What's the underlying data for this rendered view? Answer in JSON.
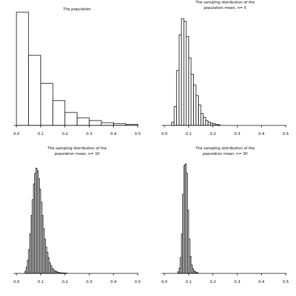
{
  "chart_data": [
    {
      "type": "bar",
      "title": [
        "The population"
      ],
      "xlim": [
        0,
        0.5
      ],
      "ylim": [
        0,
        22
      ],
      "xticks": [
        "0.0",
        "0.1",
        "0.2",
        "0.3",
        "0.4",
        "0.5"
      ],
      "bins": [
        [
          0.0,
          0.05
        ],
        [
          0.05,
          0.1
        ],
        [
          0.1,
          0.15
        ],
        [
          0.15,
          0.2
        ],
        [
          0.2,
          0.25
        ],
        [
          0.25,
          0.3
        ],
        [
          0.3,
          0.35
        ],
        [
          0.35,
          0.4
        ],
        [
          0.4,
          0.45
        ],
        [
          0.45,
          0.5
        ]
      ],
      "values": [
        21.0,
        13.0,
        7.8,
        4.6,
        2.4,
        1.4,
        0.9,
        0.5,
        0.3,
        0.2
      ]
    },
    {
      "type": "bar",
      "title": [
        "The sampling distribution of the",
        "population mean, n= 5"
      ],
      "xlim": [
        0,
        0.5
      ],
      "ylim": [
        0,
        22
      ],
      "xticks": [
        "0.0",
        "0.1",
        "0.2",
        "0.3",
        "0.4",
        "0.5"
      ],
      "bins": [
        [
          0.03,
          0.04
        ],
        [
          0.04,
          0.05
        ],
        [
          0.05,
          0.06
        ],
        [
          0.06,
          0.07
        ],
        [
          0.07,
          0.08
        ],
        [
          0.08,
          0.09
        ],
        [
          0.09,
          0.1
        ],
        [
          0.1,
          0.11
        ],
        [
          0.11,
          0.12
        ],
        [
          0.12,
          0.13
        ],
        [
          0.13,
          0.14
        ],
        [
          0.14,
          0.15
        ],
        [
          0.15,
          0.16
        ],
        [
          0.16,
          0.17
        ],
        [
          0.17,
          0.18
        ],
        [
          0.18,
          0.19
        ],
        [
          0.19,
          0.2
        ],
        [
          0.2,
          0.21
        ],
        [
          0.21,
          0.22
        ],
        [
          0.22,
          0.23
        ]
      ],
      "values": [
        0.6,
        3.5,
        10.2,
        16.8,
        19.8,
        19.3,
        16.5,
        12.5,
        9.5,
        7.5,
        5.5,
        3.8,
        2.2,
        1.5,
        0.9,
        0.6,
        0.4,
        0.3,
        0.2,
        0.1
      ]
    },
    {
      "type": "bar",
      "title": [
        "The sampling distribution of the",
        "population mean, n= 10"
      ],
      "xlim": [
        0,
        0.5
      ],
      "ylim": [
        0,
        22
      ],
      "xticks": [
        "0.0",
        "0.1",
        "0.2",
        "0.3",
        "0.4",
        "0.5"
      ],
      "bins": [
        [
          0.035,
          0.04
        ],
        [
          0.04,
          0.045
        ],
        [
          0.045,
          0.05
        ],
        [
          0.05,
          0.055
        ],
        [
          0.055,
          0.06
        ],
        [
          0.06,
          0.065
        ],
        [
          0.065,
          0.07
        ],
        [
          0.07,
          0.075
        ],
        [
          0.075,
          0.08
        ],
        [
          0.08,
          0.085
        ],
        [
          0.085,
          0.09
        ],
        [
          0.09,
          0.095
        ],
        [
          0.095,
          0.1
        ],
        [
          0.1,
          0.105
        ],
        [
          0.105,
          0.11
        ],
        [
          0.11,
          0.115
        ],
        [
          0.115,
          0.12
        ],
        [
          0.12,
          0.125
        ],
        [
          0.125,
          0.13
        ],
        [
          0.13,
          0.135
        ],
        [
          0.135,
          0.14
        ],
        [
          0.14,
          0.145
        ],
        [
          0.145,
          0.15
        ],
        [
          0.15,
          0.155
        ],
        [
          0.155,
          0.16
        ],
        [
          0.16,
          0.165
        ],
        [
          0.165,
          0.17
        ],
        [
          0.17,
          0.175
        ],
        [
          0.175,
          0.18
        ],
        [
          0.18,
          0.19
        ],
        [
          0.19,
          0.2
        ],
        [
          0.2,
          0.21
        ]
      ],
      "values": [
        0.4,
        1.2,
        2.5,
        4.5,
        7.5,
        11.0,
        14.0,
        17.0,
        19.0,
        20.0,
        19.5,
        18.0,
        16.0,
        13.5,
        11.0,
        8.5,
        6.5,
        5.0,
        4.0,
        3.0,
        2.0,
        1.5,
        1.0,
        0.7,
        0.5,
        0.4,
        0.3,
        0.2,
        0.15,
        0.1,
        0.08,
        0.05
      ]
    },
    {
      "type": "bar",
      "title": [
        "The sampling distribution of the",
        "population mean, n= 30"
      ],
      "xlim": [
        0,
        0.5
      ],
      "ylim": [
        0,
        22
      ],
      "xticks": [
        "0.0",
        "0.1",
        "0.2",
        "0.3",
        "0.4",
        "0.5"
      ],
      "bins": [
        [
          0.055,
          0.06
        ],
        [
          0.06,
          0.065
        ],
        [
          0.065,
          0.07
        ],
        [
          0.07,
          0.075
        ],
        [
          0.075,
          0.08
        ],
        [
          0.08,
          0.085
        ],
        [
          0.085,
          0.09
        ],
        [
          0.09,
          0.095
        ],
        [
          0.095,
          0.1
        ],
        [
          0.1,
          0.105
        ],
        [
          0.105,
          0.11
        ],
        [
          0.11,
          0.115
        ],
        [
          0.115,
          0.12
        ],
        [
          0.12,
          0.125
        ],
        [
          0.125,
          0.13
        ],
        [
          0.13,
          0.135
        ],
        [
          0.135,
          0.14
        ]
      ],
      "values": [
        0.3,
        1.0,
        3.0,
        7.5,
        15.0,
        20.5,
        20.8,
        19.0,
        12.0,
        6.5,
        3.2,
        1.6,
        0.9,
        0.5,
        0.3,
        0.15,
        0.1
      ]
    }
  ]
}
